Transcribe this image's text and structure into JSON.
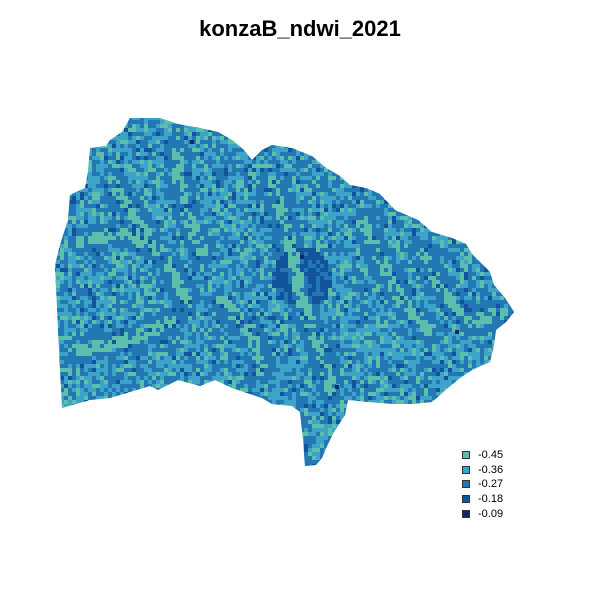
{
  "title": "konzaB_ndwi_2021",
  "legend": {
    "items": [
      {
        "label": "-0.45",
        "color": "#5dbfab"
      },
      {
        "label": "-0.36",
        "color": "#3ea3c9"
      },
      {
        "label": "-0.27",
        "color": "#2377b2"
      },
      {
        "label": "-0.18",
        "color": "#11539c"
      },
      {
        "label": "-0.09",
        "color": "#0b2a6b"
      }
    ]
  }
}
